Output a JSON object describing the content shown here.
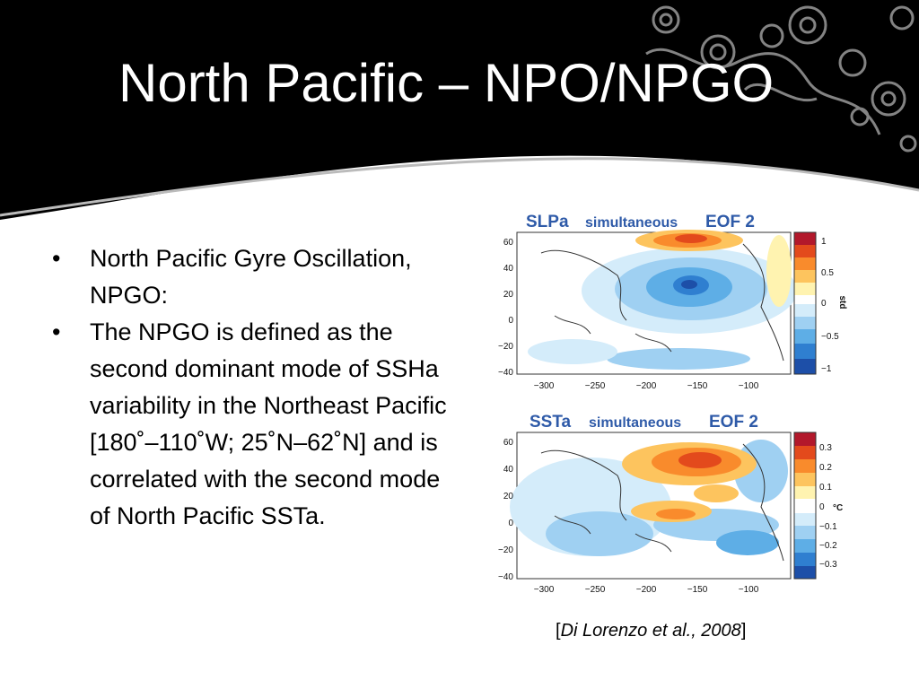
{
  "slide": {
    "title": "North Pacific – NPO/NPGO",
    "bullets": [
      {
        "text": "North Pacific Gyre Oscillation, NPGO:"
      },
      {
        "text": "The NPGO is defined as the second dominant mode of SSHa variability in the Northeast Pacific [180˚–110˚W; 25˚N–62˚N] and is correlated with the second mode of North Pacific SSTa."
      }
    ],
    "bullet_symbol": "•",
    "citation": {
      "open": "[",
      "authors": "Di Lorenzo et al., 2008",
      "close": "]"
    }
  },
  "figures": [
    {
      "title_main": "SLPa",
      "title_mid": "simultaneous",
      "title_end": "EOF 2",
      "y_ticks": [
        "60",
        "40",
        "20",
        "0",
        "−20",
        "−40"
      ],
      "x_ticks": [
        "−300",
        "−250",
        "−200",
        "−150",
        "−100"
      ],
      "colorbar_ticks": [
        "1",
        "0.5",
        "0",
        "−0.5",
        "−1"
      ],
      "colorbar_unit": "std"
    },
    {
      "title_main": "SSTa",
      "title_mid": "simultaneous",
      "title_end": "EOF 2",
      "y_ticks": [
        "60",
        "40",
        "20",
        "0",
        "−20",
        "−40"
      ],
      "x_ticks": [
        "−300",
        "−250",
        "−200",
        "−150",
        "−100"
      ],
      "colorbar_ticks": [
        "0.3",
        "0.2",
        "0.1",
        "0",
        "−0.1",
        "−0.2",
        "−0.3"
      ],
      "colorbar_unit": "°C"
    }
  ],
  "colors": {
    "header_bg": "#000000",
    "title_text": "#ffffff",
    "figure_title": "#2e5aa8",
    "colorbar": [
      "#b2182b",
      "#e34a1c",
      "#f98b2c",
      "#fdc45e",
      "#fff3b0",
      "#ffffff",
      "#d4ecfa",
      "#9fd0f2",
      "#5eaee6",
      "#2f7fd0",
      "#1d4fa8"
    ]
  }
}
